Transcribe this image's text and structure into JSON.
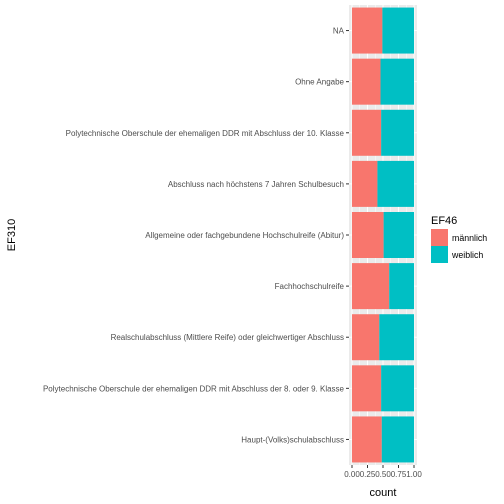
{
  "chart_data": {
    "type": "bar",
    "orientation": "horizontal",
    "stacked": true,
    "position": "fill",
    "title": "",
    "xlabel": "count",
    "ylabel": "EF310",
    "xlim": [
      0,
      1
    ],
    "x_ticks": [
      "0.00",
      "0.25",
      "0.50",
      "0.75",
      "1.00"
    ],
    "x_tick_values": [
      0,
      0.25,
      0.5,
      0.75,
      1.0
    ],
    "grid": true,
    "legend_position": "right",
    "categories": [
      "NA",
      "Ohne Angabe",
      "Polytechnische Oberschule der ehemaligen DDR mit Abschluss der 10. Klasse",
      "Abschluss nach höchstens 7 Jahren Schulbesuch",
      "Allgemeine oder fachgebundene Hochschulreife (Abitur)",
      "Fachhochschulreife",
      "Realschulabschluss (Mittlere Reife) oder gleichwertiger Abschluss",
      "Polytechnische Oberschule der ehemaligen DDR mit Abschluss der 8. oder 9. Klasse",
      "Haupt-(Volks)schulabschluss"
    ],
    "legend_title": "EF46",
    "series": [
      {
        "name": "männlich",
        "color": "#F8766D",
        "values": [
          0.49,
          0.46,
          0.47,
          0.41,
          0.51,
          0.6,
          0.44,
          0.47,
          0.48
        ]
      },
      {
        "name": "weiblich",
        "color": "#00BFC4",
        "values": [
          0.51,
          0.54,
          0.53,
          0.59,
          0.49,
          0.4,
          0.56,
          0.53,
          0.52
        ]
      }
    ]
  }
}
